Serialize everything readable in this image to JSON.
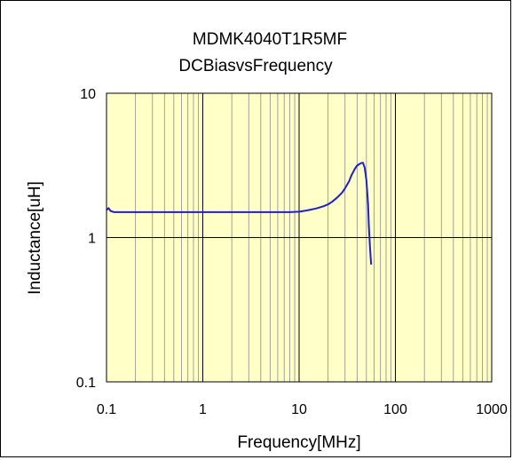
{
  "chart_data": {
    "type": "line",
    "title": "MDMK4040T1R5MF",
    "subtitle": "DCBiasvsFrequency",
    "xlabel": "Frequency[MHz]",
    "ylabel": "Inductance[uH]",
    "x_scale": "log",
    "y_scale": "log",
    "xlim": [
      0.1,
      1000
    ],
    "ylim": [
      0.1,
      10
    ],
    "x_ticks": [
      "0.1",
      "1",
      "10",
      "100",
      "1000"
    ],
    "y_ticks": [
      "0.1",
      "1",
      "10"
    ],
    "grid": true,
    "plot_background": "#ffffc8",
    "line_color": "#1f1fd0",
    "series": [
      {
        "x": [
          0.1,
          0.105,
          0.11,
          0.12,
          0.15,
          0.2,
          0.5,
          1,
          2,
          5,
          8,
          10,
          12,
          15,
          18,
          20,
          22,
          25,
          28,
          30,
          33,
          35,
          38,
          40,
          42,
          44,
          46,
          48,
          50,
          52,
          53,
          54,
          54.5,
          55,
          55.5,
          56
        ],
        "y": [
          1.55,
          1.6,
          1.53,
          1.5,
          1.5,
          1.5,
          1.5,
          1.5,
          1.5,
          1.5,
          1.5,
          1.51,
          1.54,
          1.59,
          1.65,
          1.7,
          1.77,
          1.9,
          2.05,
          2.2,
          2.45,
          2.7,
          3.0,
          3.15,
          3.22,
          3.28,
          3.3,
          3.05,
          2.5,
          1.7,
          1.2,
          0.95,
          0.85,
          0.78,
          0.7,
          0.65
        ]
      }
    ]
  }
}
